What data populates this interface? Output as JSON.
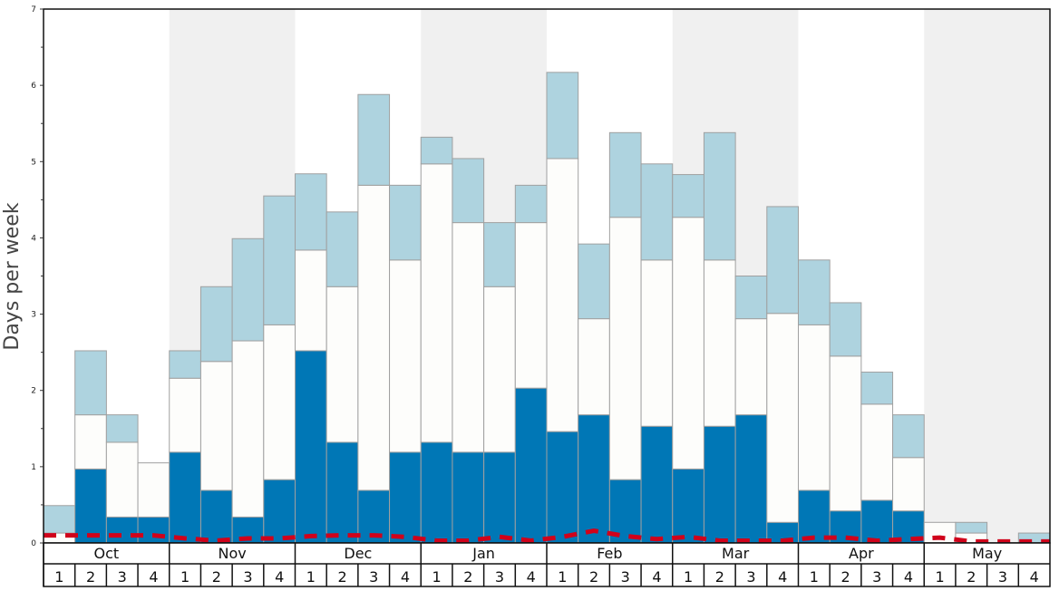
{
  "chart_data": {
    "type": "bar",
    "stacked": true,
    "title": "",
    "xlabel": "",
    "ylabel": "Days per week",
    "ylim": [
      0,
      7
    ],
    "yticks": [
      "0",
      "1",
      "2",
      "3",
      "4",
      "5",
      "6",
      "7"
    ],
    "months": [
      "Oct",
      "Nov",
      "Dec",
      "Jan",
      "Feb",
      "Mar",
      "Apr",
      "May"
    ],
    "weeks": [
      "1",
      "2",
      "3",
      "4"
    ],
    "series": [
      {
        "name": "dark",
        "color": "#0077b6",
        "values": [
          0,
          0.97,
          0.34,
          0.34,
          1.19,
          0.69,
          0.34,
          0.83,
          2.52,
          1.32,
          0.69,
          1.19,
          1.32,
          1.19,
          1.19,
          2.03,
          1.46,
          1.68,
          0.83,
          1.53,
          0.97,
          1.53,
          1.68,
          0.27,
          0.69,
          0.42,
          0.56,
          0.42,
          0,
          0,
          0,
          0
        ]
      },
      {
        "name": "white",
        "color": "#fdfdfb",
        "values": [
          0.13,
          0.71,
          0.98,
          0.71,
          0.97,
          1.69,
          2.31,
          2.03,
          1.32,
          2.04,
          4.0,
          2.52,
          3.65,
          3.01,
          2.17,
          2.17,
          3.58,
          1.26,
          3.44,
          2.18,
          3.3,
          2.18,
          1.26,
          2.74,
          2.17,
          2.03,
          1.26,
          0.7,
          0.27,
          0.13,
          0,
          0
        ]
      },
      {
        "name": "light",
        "color": "#aed3df",
        "values": [
          0.36,
          0.84,
          0.36,
          0,
          0.36,
          0.98,
          1.34,
          1.69,
          1.0,
          0.98,
          1.19,
          0.98,
          0.35,
          0.84,
          0.84,
          0.49,
          1.13,
          0.98,
          1.11,
          1.26,
          0.56,
          1.67,
          0.56,
          1.4,
          0.85,
          0.7,
          0.42,
          0.56,
          0,
          0.14,
          0,
          0.13
        ]
      }
    ],
    "line": {
      "name": "average",
      "color": "#d0021b",
      "style": "dashed",
      "values": [
        0.1,
        0.1,
        0.1,
        0.1,
        0.06,
        0.03,
        0.06,
        0.06,
        0.09,
        0.1,
        0.1,
        0.08,
        0.03,
        0.03,
        0.08,
        0.03,
        0.08,
        0.16,
        0.09,
        0.05,
        0.08,
        0.03,
        0.03,
        0.03,
        0.07,
        0.07,
        0.03,
        0.05,
        0.07,
        0.02,
        0.02,
        0.02
      ]
    },
    "shaded_months": [
      "Nov",
      "Jan",
      "Mar",
      "May"
    ],
    "grid": false,
    "legend": "none"
  }
}
